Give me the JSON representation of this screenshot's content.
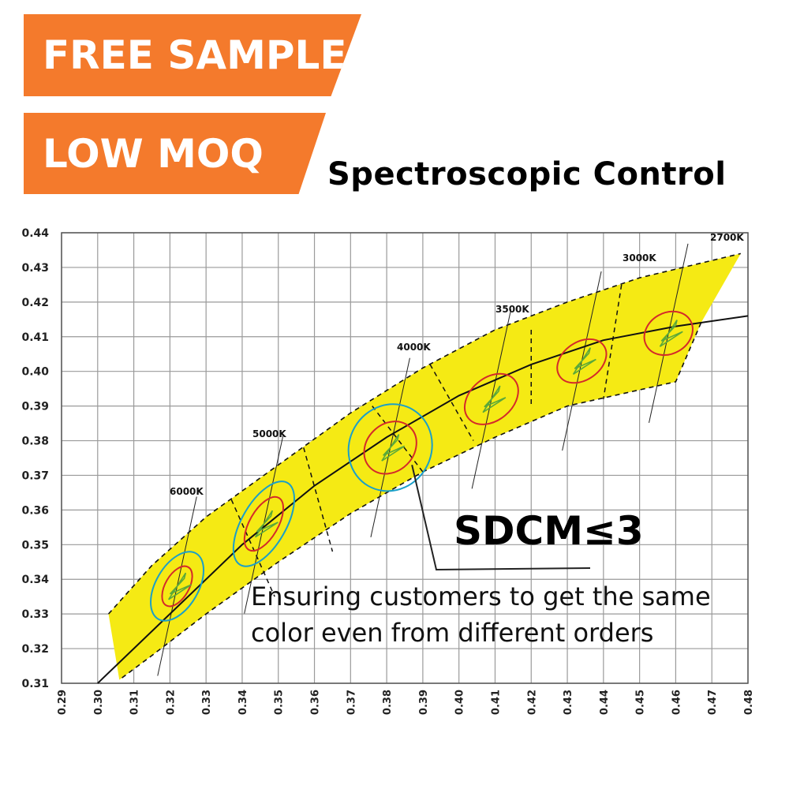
{
  "banners": {
    "free_sample": "FREE SAMPLE",
    "low_moq": "LOW MOQ"
  },
  "heading": "Spectroscopic Control",
  "sdcm_label": "SDCM≤3",
  "caption": {
    "line1": "Ensuring customers to get the same",
    "line2": "color even from different orders"
  },
  "colors": {
    "banner": "#f47a2c",
    "band_fill": "#f5ea14",
    "outer_ellipse": "#1a9fc9",
    "inner_ellipse": "#d42a2a",
    "quadrangle": "#5aa83a",
    "curve": "#111111",
    "grid": "#9a9a9a"
  },
  "chart_data": {
    "type": "scatter",
    "xlim": [
      0.29,
      0.48
    ],
    "ylim": [
      0.31,
      0.44
    ],
    "x_ticks": [
      "0.29",
      "0.30",
      "0.31",
      "0.32",
      "0.33",
      "0.34",
      "0.35",
      "0.36",
      "0.37",
      "0.38",
      "0.39",
      "0.40",
      "0.41",
      "0.42",
      "0.43",
      "0.44",
      "0.45",
      "0.46",
      "0.47",
      "0.48"
    ],
    "y_ticks": [
      "0.44",
      "0.43",
      "0.42",
      "0.41",
      "0.40",
      "0.39",
      "0.38",
      "0.37",
      "0.36",
      "0.35",
      "0.34",
      "0.33",
      "0.32",
      "0.31"
    ],
    "grid": true,
    "planckian_locus": [
      [
        0.3,
        0.31
      ],
      [
        0.32,
        0.33
      ],
      [
        0.34,
        0.35
      ],
      [
        0.36,
        0.367
      ],
      [
        0.38,
        0.381
      ],
      [
        0.4,
        0.393
      ],
      [
        0.42,
        0.402
      ],
      [
        0.44,
        0.409
      ],
      [
        0.46,
        0.413
      ],
      [
        0.48,
        0.416
      ]
    ],
    "cct_points": [
      {
        "label": "6000K",
        "x": 0.322,
        "y": 0.338
      },
      {
        "label": "5000K",
        "x": 0.346,
        "y": 0.356
      },
      {
        "label": "4000K",
        "x": 0.381,
        "y": 0.378
      },
      {
        "label": "3500K",
        "x": 0.409,
        "y": 0.392
      },
      {
        "label": "3000K",
        "x": 0.434,
        "y": 0.403
      },
      {
        "label": "2700K",
        "x": 0.458,
        "y": 0.411
      }
    ]
  }
}
